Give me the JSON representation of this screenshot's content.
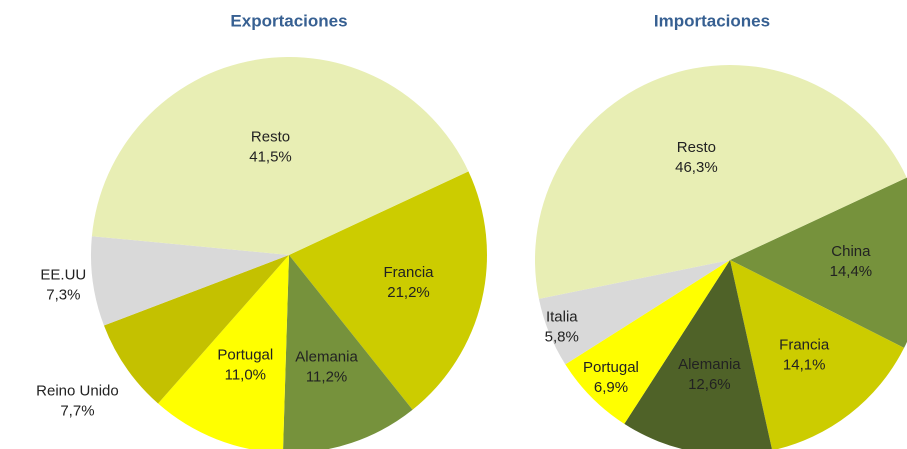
{
  "chart_data": [
    {
      "type": "pie",
      "title": "Exportaciones",
      "categories": [
        "Francia",
        "Alemania",
        "Portugal",
        "Reino Unido",
        "EE.UU",
        "Resto"
      ],
      "values": [
        21.2,
        11.2,
        11.0,
        7.7,
        7.3,
        41.5
      ],
      "value_labels": [
        "21,2%",
        "11,2%",
        "11,0%",
        "7,7%",
        "7,3%",
        "41,5%"
      ],
      "colors": [
        "#cccc00",
        "#76923c",
        "#ffff00",
        "#c4c100",
        "#d9d9d9",
        "#e8eeb4"
      ]
    },
    {
      "type": "pie",
      "title": "Importaciones",
      "categories": [
        "China",
        "Francia",
        "Alemania",
        "Portugal",
        "Italia",
        "Resto"
      ],
      "values": [
        14.4,
        14.1,
        12.6,
        6.9,
        5.8,
        46.3
      ],
      "value_labels": [
        "14,4%",
        "14,1%",
        "12,6%",
        "6,9%",
        "5,8%",
        "46,3%"
      ],
      "colors": [
        "#76923c",
        "#cccc00",
        "#4f6228",
        "#ffff00",
        "#d9d9d9",
        "#e8eeb4"
      ]
    }
  ]
}
